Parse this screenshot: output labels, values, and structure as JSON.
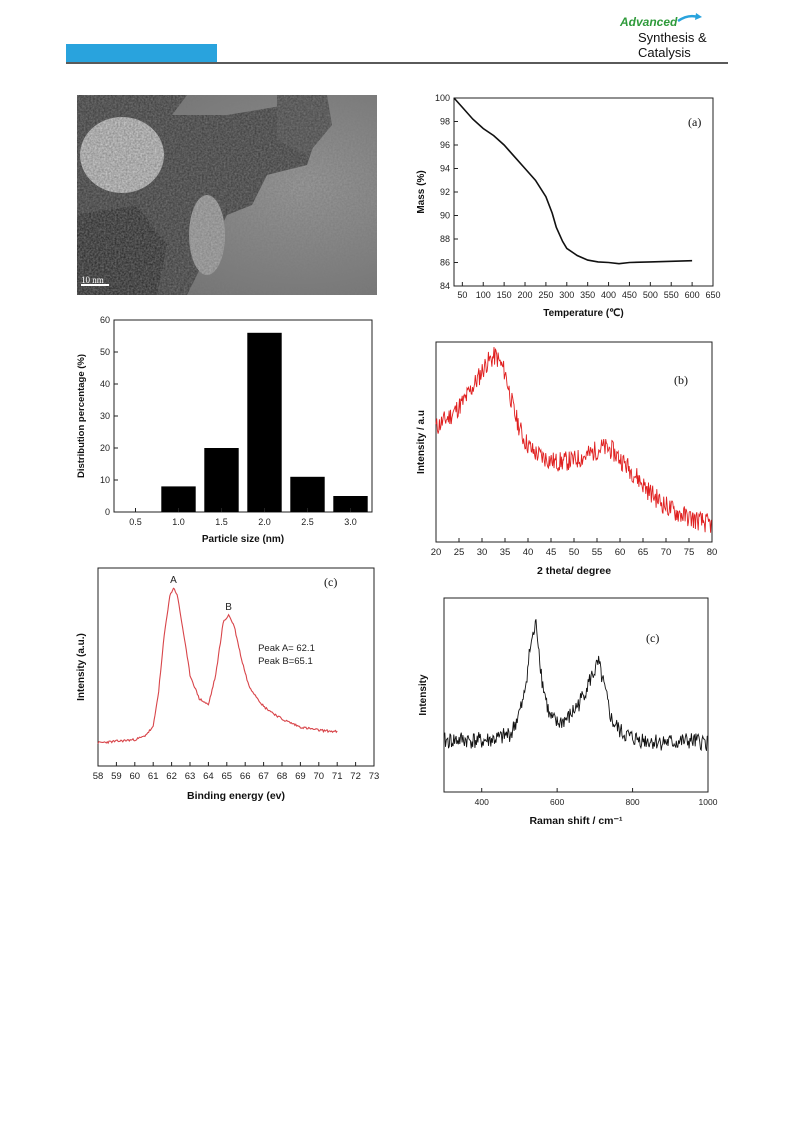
{
  "header": {
    "logo_line1": "Advanced",
    "logo_line2": "Synthesis &",
    "logo_line3": "Catalysis",
    "accent_color": "#29a3dd",
    "logo_green": "#2e9a3a"
  },
  "tem": {
    "scale_label": "10 nm"
  },
  "charts": {
    "tga": {
      "type": "line",
      "panel_label": "(a)",
      "xlabel": "Temperature (℃)",
      "ylabel": "Mass (%)",
      "xticks": [
        "50",
        "100",
        "150",
        "200",
        "250",
        "300",
        "350",
        "400",
        "450",
        "500",
        "550",
        "600",
        "650"
      ],
      "yticks": [
        "84",
        "86",
        "88",
        "90",
        "92",
        "94",
        "96",
        "98",
        "100"
      ]
    },
    "hist": {
      "type": "bar",
      "xlabel": "Particle size (nm)",
      "ylabel": "Distribution percentage (%)",
      "categories": [
        "0.5",
        "1.0",
        "1.5",
        "2.0",
        "2.5",
        "3.0"
      ],
      "yticks": [
        "0",
        "10",
        "20",
        "30",
        "40",
        "50",
        "60"
      ]
    },
    "xrd": {
      "type": "line",
      "panel_label": "(b)",
      "xlabel": "2 theta/ degree",
      "ylabel": "Intensity / a.u",
      "xticks": [
        "20",
        "25",
        "30",
        "35",
        "40",
        "45",
        "50",
        "55",
        "60",
        "65",
        "70",
        "75",
        "80"
      ],
      "color": "#e02020"
    },
    "xps": {
      "type": "line",
      "panel_label": "(c)",
      "xlabel": "Binding energy (ev)",
      "ylabel": "Intensity (a.u.)",
      "xticks": [
        "58",
        "59",
        "60",
        "61",
        "62",
        "63",
        "64",
        "65",
        "66",
        "67",
        "68",
        "69",
        "70",
        "71",
        "72",
        "73"
      ],
      "peak_a_label": "A",
      "peak_b_label": "B",
      "note1": "Peak A= 62.1",
      "note2": "Peak B=65.1",
      "color": "#d8454a"
    },
    "raman": {
      "type": "line",
      "panel_label": "(c)",
      "xlabel": "Raman shift / cm⁻¹",
      "ylabel": "Intensity",
      "xticks": [
        "400",
        "600",
        "800",
        "1000"
      ]
    }
  },
  "chart_data": [
    {
      "type": "line",
      "xlabel": "Temperature (℃)",
      "ylabel": "Mass (%)",
      "xlim": [
        30,
        650
      ],
      "ylim": [
        84,
        100
      ],
      "x": [
        30,
        50,
        75,
        100,
        125,
        150,
        175,
        200,
        225,
        250,
        265,
        275,
        290,
        300,
        325,
        350,
        375,
        400,
        425,
        450,
        500,
        550,
        600
      ],
      "y": [
        100,
        99.2,
        98.2,
        97.4,
        96.8,
        96.0,
        95.0,
        94.0,
        93.0,
        91.6,
        90.2,
        89.0,
        87.8,
        87.2,
        86.6,
        86.2,
        86.05,
        86.0,
        85.9,
        86.0,
        86.05,
        86.1,
        86.15
      ]
    },
    {
      "type": "bar",
      "xlabel": "Particle size (nm)",
      "ylabel": "Distribution percentage (%)",
      "categories": [
        "0.5",
        "1.0",
        "1.5",
        "2.0",
        "2.5",
        "3.0"
      ],
      "values": [
        0,
        8,
        20,
        56,
        11,
        5
      ],
      "ylim": [
        0,
        60
      ]
    },
    {
      "type": "line",
      "xlabel": "2 theta/ degree",
      "ylabel": "Intensity / a.u",
      "xlim": [
        20,
        80
      ],
      "x": [
        20,
        23,
        26,
        29,
        31,
        33,
        35,
        37,
        39,
        41,
        43,
        46,
        50,
        53,
        56,
        58,
        60,
        63,
        66,
        69,
        72,
        76,
        80
      ],
      "y": [
        0.58,
        0.64,
        0.72,
        0.84,
        0.93,
        0.97,
        0.88,
        0.66,
        0.52,
        0.45,
        0.42,
        0.39,
        0.4,
        0.43,
        0.47,
        0.46,
        0.41,
        0.33,
        0.24,
        0.17,
        0.12,
        0.08,
        0.05
      ]
    },
    {
      "type": "line",
      "xlabel": "Binding energy (ev)",
      "ylabel": "Intensity (a.u.)",
      "xlim": [
        58,
        73
      ],
      "x": [
        58,
        59,
        60,
        60.5,
        61,
        61.3,
        61.6,
        61.9,
        62.1,
        62.3,
        62.6,
        63,
        63.5,
        64,
        64.4,
        64.8,
        65.1,
        65.4,
        65.8,
        66.2,
        67,
        68,
        69,
        70,
        71
      ],
      "y": [
        0.02,
        0.03,
        0.04,
        0.06,
        0.12,
        0.35,
        0.7,
        0.95,
        1.0,
        0.96,
        0.75,
        0.45,
        0.3,
        0.26,
        0.45,
        0.78,
        0.83,
        0.76,
        0.55,
        0.38,
        0.25,
        0.17,
        0.12,
        0.1,
        0.09
      ]
    },
    {
      "type": "line",
      "xlabel": "Raman shift / cm⁻¹",
      "ylabel": "Intensity",
      "xlim": [
        300,
        1000
      ],
      "x": [
        300,
        350,
        400,
        450,
        480,
        510,
        530,
        545,
        560,
        580,
        600,
        630,
        660,
        690,
        710,
        725,
        745,
        770,
        800,
        850,
        900,
        950,
        1000
      ],
      "y": [
        0.18,
        0.19,
        0.18,
        0.2,
        0.24,
        0.45,
        0.85,
        1.0,
        0.6,
        0.35,
        0.3,
        0.34,
        0.45,
        0.62,
        0.72,
        0.55,
        0.32,
        0.24,
        0.2,
        0.18,
        0.17,
        0.18,
        0.17
      ]
    }
  ]
}
